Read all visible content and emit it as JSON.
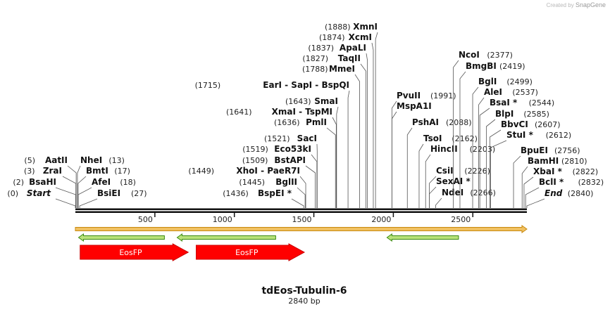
{
  "credit": {
    "prefix": "Created by",
    "brand": "SnapGene"
  },
  "map": {
    "title": "tdEos-Tubulin-6",
    "subtitle": "2840 bp",
    "length": 2840,
    "ticks": [
      "500",
      "1000",
      "1500",
      "2000",
      "2500"
    ],
    "tick_values": [
      500,
      1000,
      1500,
      2000,
      2500
    ]
  },
  "sites": [
    {
      "name": "Start",
      "pos": 0,
      "pos_label": "(0)",
      "italic": true
    },
    {
      "name": "BsaHI",
      "pos": 2,
      "pos_label": "(2)"
    },
    {
      "name": "ZraI",
      "pos": 3,
      "pos_label": "(3)"
    },
    {
      "name": "AatII",
      "pos": 5,
      "pos_label": "(5)"
    },
    {
      "name": "NheI",
      "pos": 13,
      "pos_label": "(13)"
    },
    {
      "name": "BmtI",
      "pos": 17,
      "pos_label": "(17)"
    },
    {
      "name": "AfeI",
      "pos": 18,
      "pos_label": "(18)"
    },
    {
      "name": "BsiEI",
      "pos": 27,
      "pos_label": "(27)"
    },
    {
      "name": "BspEI *",
      "pos": 1436,
      "pos_label": "(1436)"
    },
    {
      "name": "BglII",
      "pos": 1445,
      "pos_label": "(1445)"
    },
    {
      "name": "XhoI  -  PaeR7I",
      "pos": 1449,
      "pos_label": "(1449)"
    },
    {
      "name": "BstAPI",
      "pos": 1509,
      "pos_label": "(1509)"
    },
    {
      "name": "Eco53kI",
      "pos": 1519,
      "pos_label": "(1519)"
    },
    {
      "name": "SacI",
      "pos": 1521,
      "pos_label": "(1521)"
    },
    {
      "name": "PmlI",
      "pos": 1636,
      "pos_label": "(1636)"
    },
    {
      "name": "XmaI  -  TspMI",
      "pos": 1641,
      "pos_label": "(1641)"
    },
    {
      "name": "SmaI",
      "pos": 1643,
      "pos_label": "(1643)"
    },
    {
      "name": "EarI  -  SapI  -  BspQI",
      "pos": 1715,
      "pos_label": "(1715)"
    },
    {
      "name": "MmeI",
      "pos": 1788,
      "pos_label": "(1788)"
    },
    {
      "name": "TaqII",
      "pos": 1827,
      "pos_label": "(1827)"
    },
    {
      "name": "ApaLI",
      "pos": 1837,
      "pos_label": "(1837)"
    },
    {
      "name": "XcmI",
      "pos": 1874,
      "pos_label": "(1874)"
    },
    {
      "name": "XmnI",
      "pos": 1888,
      "pos_label": "(1888)"
    },
    {
      "name": "PvuII",
      "pos": 1991,
      "pos_label": "(1991)"
    },
    {
      "name": "MspA1I",
      "pos": 1991,
      "pos_label": ""
    },
    {
      "name": "PshAI",
      "pos": 2088,
      "pos_label": "(2088)"
    },
    {
      "name": "TsoI",
      "pos": 2162,
      "pos_label": "(2162)"
    },
    {
      "name": "HincII",
      "pos": 2203,
      "pos_label": "(2203)"
    },
    {
      "name": "CsiI",
      "pos": 2226,
      "pos_label": "(2226)"
    },
    {
      "name": "SexAI *",
      "pos": 2226,
      "pos_label": ""
    },
    {
      "name": "NdeI",
      "pos": 2266,
      "pos_label": "(2266)"
    },
    {
      "name": "NcoI",
      "pos": 2377,
      "pos_label": "(2377)"
    },
    {
      "name": "BmgBI",
      "pos": 2419,
      "pos_label": "(2419)"
    },
    {
      "name": "BglI",
      "pos": 2499,
      "pos_label": "(2499)"
    },
    {
      "name": "AleI",
      "pos": 2537,
      "pos_label": "(2537)"
    },
    {
      "name": "BsaI *",
      "pos": 2544,
      "pos_label": "(2544)"
    },
    {
      "name": "BlpI",
      "pos": 2585,
      "pos_label": "(2585)"
    },
    {
      "name": "BbvCI",
      "pos": 2607,
      "pos_label": "(2607)"
    },
    {
      "name": "StuI *",
      "pos": 2612,
      "pos_label": "(2612)"
    },
    {
      "name": "BpuEI",
      "pos": 2756,
      "pos_label": "(2756)"
    },
    {
      "name": "BamHI",
      "pos": 2810,
      "pos_label": "(2810)"
    },
    {
      "name": "XbaI *",
      "pos": 2822,
      "pos_label": "(2822)"
    },
    {
      "name": "BclI *",
      "pos": 2832,
      "pos_label": "(2832)"
    },
    {
      "name": "End",
      "pos": 2840,
      "pos_label": "(2840)",
      "italic": true
    }
  ],
  "features": [
    {
      "name": "",
      "type": "orf-forward",
      "start": 0,
      "end": 2840,
      "color": "#f0c060",
      "stroke": "#c88a10"
    },
    {
      "name": "",
      "type": "orf-reverse",
      "start": 20,
      "end": 560,
      "color": "#b8e27a",
      "stroke": "#3a8a10"
    },
    {
      "name": "",
      "type": "orf-reverse",
      "start": 640,
      "end": 1260,
      "color": "#b8e27a",
      "stroke": "#3a8a10"
    },
    {
      "name": "",
      "type": "orf-reverse",
      "start": 1960,
      "end": 2410,
      "color": "#b8e27a",
      "stroke": "#3a8a10"
    },
    {
      "name": "EosFP",
      "type": "cds",
      "start": 30,
      "end": 710,
      "color": "#ff0000",
      "stroke": "#cc0000"
    },
    {
      "name": "EosFP",
      "type": "cds",
      "start": 760,
      "end": 1440,
      "color": "#ff0000",
      "stroke": "#cc0000"
    }
  ]
}
